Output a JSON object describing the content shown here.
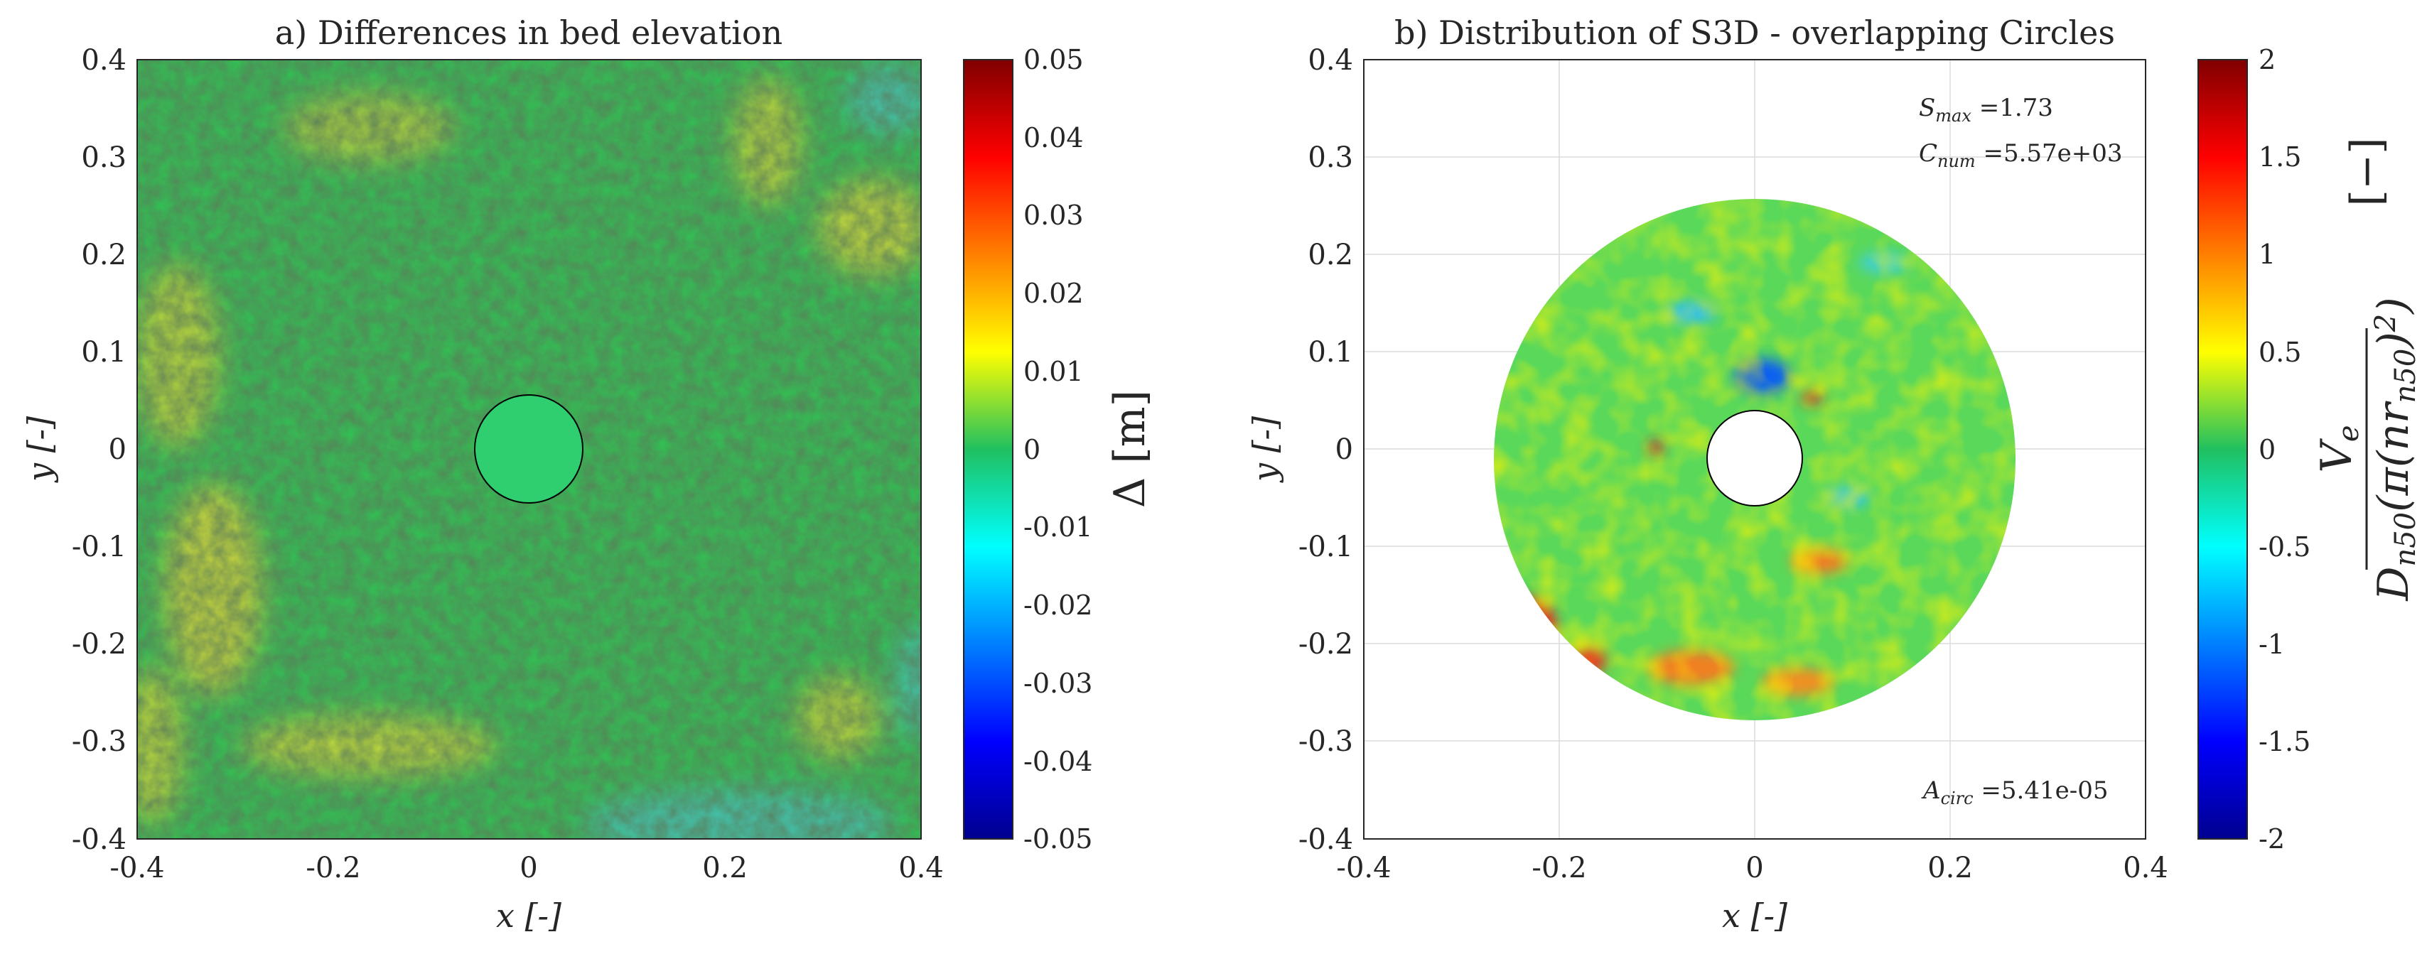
{
  "chart_data": [
    {
      "type": "heatmap",
      "title": "a) Differences in bed elevation",
      "xlabel": "x [-]",
      "ylabel": "y [-]",
      "xlim": [
        -0.4,
        0.4
      ],
      "ylim": [
        -0.4,
        0.4
      ],
      "xticks": [
        "-0.4",
        "-0.2",
        "0",
        "0.2",
        "0.4"
      ],
      "yticks": [
        "0.4",
        "0.3",
        "0.2",
        "0.1",
        "0",
        "-0.1",
        "-0.2",
        "-0.3",
        "-0.4"
      ],
      "grid": false,
      "colorbar": {
        "label": "Δ [m]",
        "range": [
          -0.05,
          0.05
        ],
        "ticks": [
          "0.05",
          "0.04",
          "0.03",
          "0.02",
          "0.01",
          "0",
          "-0.01",
          "-0.02",
          "-0.03",
          "-0.04",
          "-0.05"
        ],
        "colormap": "jet"
      },
      "pile": {
        "center": [
          0,
          0
        ],
        "radius": 0.055
      }
    },
    {
      "type": "heatmap",
      "title": "b) Distribution of S3D - overlapping Circles",
      "xlabel": "x [-]",
      "ylabel": "y [-]",
      "xlim": [
        -0.4,
        0.4
      ],
      "ylim": [
        -0.4,
        0.4
      ],
      "xticks": [
        "-0.4",
        "-0.2",
        "0",
        "0.2",
        "0.4"
      ],
      "yticks": [
        "0.4",
        "0.3",
        "0.2",
        "0.1",
        "0",
        "-0.1",
        "-0.2",
        "-0.3",
        "-0.4"
      ],
      "grid": true,
      "annotations": {
        "smax_label": "S",
        "smax_sub": "max",
        "smax_value": " =1.73",
        "cnum_label": "C",
        "cnum_sub": "num",
        "cnum_value": " =5.57e+03",
        "acirc_label": "A",
        "acirc_sub": "circ",
        "acirc_value": " =5.41e-05"
      },
      "domain": {
        "inner_radius": 0.05,
        "outer_radius": 0.27
      },
      "colorbar": {
        "label_numerator": "V_e",
        "label_denominator": "D_n50 (π (n r_n50)^2)",
        "label_units": "[−]",
        "range": [
          -2,
          2
        ],
        "ticks": [
          "2",
          "1.5",
          "1",
          "0.5",
          "0",
          "-0.5",
          "-1",
          "-1.5",
          "-2"
        ],
        "colormap": "jet"
      }
    }
  ]
}
